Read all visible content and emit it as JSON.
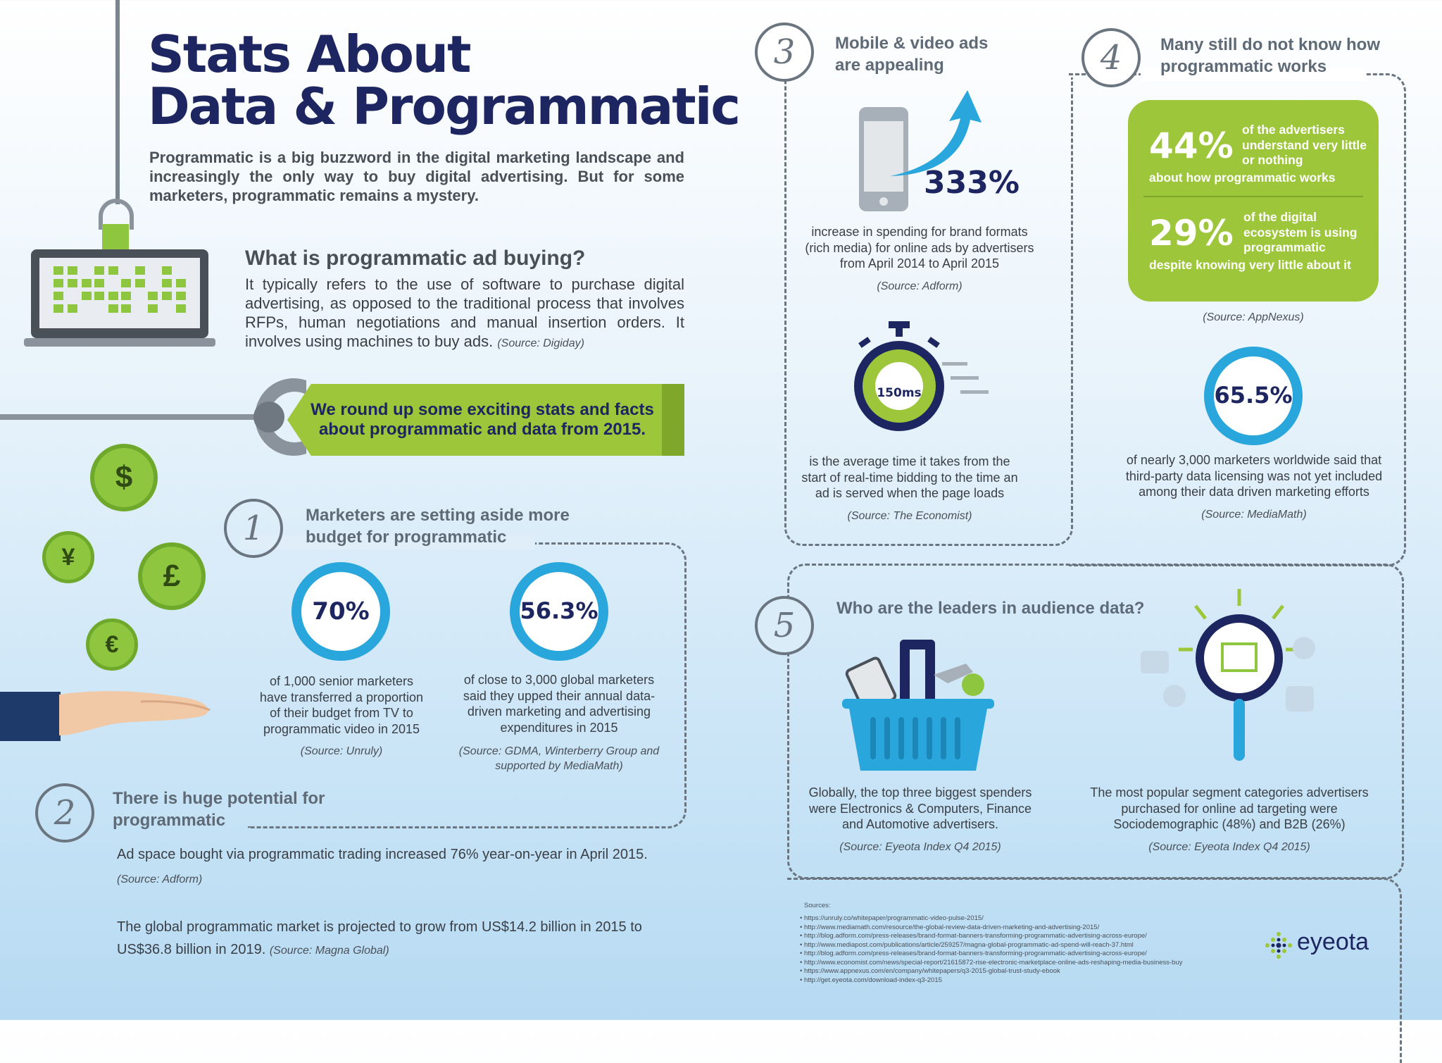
{
  "header": {
    "title_line1": "Stats About",
    "title_line2": "Data & Programmatic",
    "intro": "Programmatic is a big buzzword in the digital marketing landscape and increasingly the only way to buy digital advertising. But for some marketers, programmatic remains a mystery."
  },
  "what_is": {
    "heading": "What is programmatic ad buying?",
    "body": "It typically refers to the use of software to purchase digital advertising, as opposed to the traditional process that involves RFPs, human negotiations and manual insertion orders. It involves using machines to buy ads.",
    "source": "(Source: Digiday)"
  },
  "banner": {
    "line1": "We round up some exciting stats and facts",
    "line2": "about programmatic and data from 2015."
  },
  "currency_icons": [
    "$",
    "¥",
    "£",
    "€"
  ],
  "section1": {
    "number": "1",
    "title_line1": "Marketers are setting aside more",
    "title_line2": "budget for programmatic",
    "stat_a": {
      "value": "70%",
      "caption": "of 1,000 senior marketers have transferred a proportion of their budget from TV to programmatic video in 2015",
      "source": "(Source: Unruly)"
    },
    "stat_b": {
      "value": "56.3%",
      "caption": "of close to 3,000 global marketers said they upped their annual data-driven marketing and advertising expenditures in 2015",
      "source": "(Source: GDMA, Winterberry Group and supported by MediaMath)"
    }
  },
  "section2": {
    "number": "2",
    "title_line1": "There is huge potential for",
    "title_line2": "programmatic",
    "fact1": "Ad space bought via programmatic trading increased 76% year-on-year in April 2015.",
    "fact1_source": "(Source: Adform)",
    "fact2": "The global programmatic market is projected to grow from US$14.2 billion in 2015 to US$36.8 billion in 2019.",
    "fact2_source": "(Source: Magna Global)"
  },
  "section3": {
    "number": "3",
    "title_line1": "Mobile & video ads",
    "title_line2": "are appealing",
    "stat_a": {
      "value": "333%",
      "caption": "increase in spending for brand formats (rich media) for online ads by advertisers from April 2014 to April 2015",
      "source": "(Source: Adform)"
    },
    "stat_b": {
      "value": "150ms",
      "caption": "is the average time it takes from the start of real-time bidding to the time an ad is served when the page loads",
      "source": "(Source: The Economist)"
    }
  },
  "section4": {
    "number": "4",
    "title_line1": "Many still do not know how",
    "title_line2": "programmatic works",
    "stat_a": {
      "value": "44%",
      "side": "of the advertisers understand very little or nothing",
      "bottom": "about how programmatic works"
    },
    "stat_b": {
      "value": "29%",
      "side": "of the digital ecosystem is using programmatic",
      "bottom": "despite knowing very little about it"
    },
    "box_source": "(Source: AppNexus)",
    "stat_c": {
      "value": "65.5%",
      "caption": "of nearly 3,000 marketers worldwide said that third-party data licensing was not yet included among their data driven marketing efforts",
      "source": "(Source: MediaMath)"
    }
  },
  "section5": {
    "number": "5",
    "title": "Who are the leaders in audience data?",
    "left_caption": "Globally, the top three biggest spenders were Electronics & Computers, Finance and Automotive advertisers.",
    "left_source": "(Source: Eyeota Index Q4 2015)",
    "right_caption": "The most popular segment categories advertisers purchased for online ad targeting were Sociodemographic (48%) and B2B (26%)",
    "right_source": "(Source: Eyeota Index Q4 2015)"
  },
  "sources": {
    "heading": "Sources:",
    "items": [
      "• https://unruly.co/whitepaper/programmatic-video-pulse-2015/",
      "• http://www.mediamath.com/resource/the-global-review-data-driven-marketing-and-advertising-2015/",
      "• http://blog.adform.com/press-releases/brand-format-banners-transforming-programmatic-advertising-across-europe/",
      "• http://www.mediapost.com/publications/article/259257/magna-global-programmatic-ad-spend-will-reach-37.html",
      "• http://blog.adform.com/press-releases/brand-format-banners-transforming-programmatic-advertising-across-europe/",
      "• http://www.economist.com/news/special-report/21615872-rise-electronic-marketplace-online-ads-reshaping-media-business-buy",
      "• https://www.appnexus.com/en/company/whitepapers/q3-2015-global-trust-study-ebook",
      "• http://get.eyeota.com/download-index-q3-2015"
    ]
  },
  "brand": {
    "name": "eyeota"
  },
  "colors": {
    "navy": "#1d2660",
    "green": "#9dc63a",
    "blue": "#29a6dc",
    "gray": "#5e6a76"
  }
}
